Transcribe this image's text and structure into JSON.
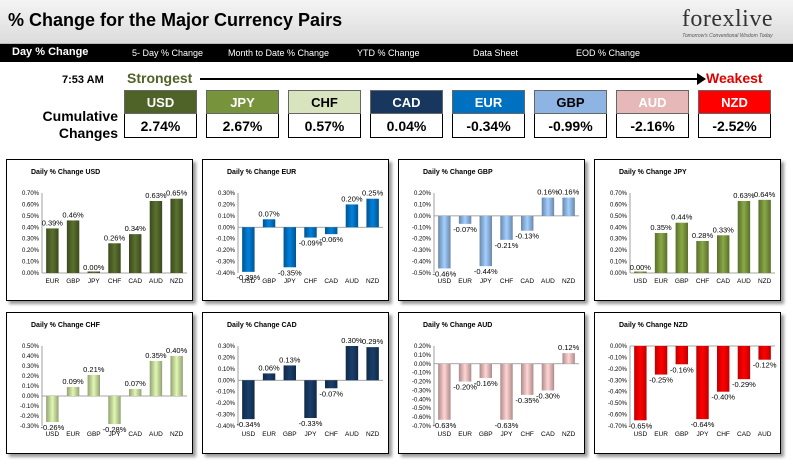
{
  "header": {
    "title": "% Change for the Major Currency Pairs",
    "logo": "forexlive",
    "logo_tagline": "Tomorrow's Conventional Wisdom Today"
  },
  "nav": {
    "items": [
      "Day % Change",
      "5- Day % Change",
      "Month to Date % Change",
      "YTD % Change",
      "Data Sheet",
      "EOD % Change"
    ]
  },
  "summary": {
    "time": "7:53 AM",
    "strongest_label": "Strongest",
    "weakest_label": "Weakest",
    "cumulative_label_1": "Cumulative",
    "cumulative_label_2": "Changes",
    "currencies": [
      {
        "code": "USD",
        "value": "2.74%",
        "color": "#4f6228",
        "text_color": "#ffffff"
      },
      {
        "code": "JPY",
        "value": "2.67%",
        "color": "#77933c",
        "text_color": "#ffffff"
      },
      {
        "code": "CHF",
        "value": "0.57%",
        "color": "#d7e4bd",
        "text_color": "#000000"
      },
      {
        "code": "CAD",
        "value": "0.04%",
        "color": "#17375e",
        "text_color": "#ffffff"
      },
      {
        "code": "EUR",
        "value": "-0.34%",
        "color": "#0070c0",
        "text_color": "#ffffff"
      },
      {
        "code": "GBP",
        "value": "-0.99%",
        "color": "#8db4e2",
        "text_color": "#000000"
      },
      {
        "code": "AUD",
        "value": "-2.16%",
        "color": "#e6b9b8",
        "text_color": "#ffffff"
      },
      {
        "code": "NZD",
        "value": "-2.52%",
        "color": "#ff0000",
        "text_color": "#ffffff"
      }
    ]
  },
  "chart_data": [
    {
      "type": "bar",
      "title": "Daily % Change USD",
      "color": "#4f6228",
      "categories": [
        "EUR",
        "GBP",
        "JPY",
        "CHF",
        "CAD",
        "AUD",
        "NZD"
      ],
      "values": [
        0.39,
        0.46,
        0.0,
        0.26,
        0.34,
        0.63,
        0.65
      ],
      "labels": [
        "0.39%",
        "0.46%",
        "0.00%",
        "0.26%",
        "0.34%",
        "0.63%",
        "0.65%"
      ],
      "ylim": [
        0,
        0.7
      ],
      "ticks": [
        "0.00%",
        "0.10%",
        "0.20%",
        "0.30%",
        "0.40%",
        "0.50%",
        "0.60%",
        "0.70%"
      ]
    },
    {
      "type": "bar",
      "title": "Daily % Change EUR",
      "color": "#0070c0",
      "categories": [
        "USD",
        "GBP",
        "JPY",
        "CHF",
        "CAD",
        "AUD",
        "NZD"
      ],
      "values": [
        -0.39,
        0.07,
        -0.35,
        -0.09,
        -0.06,
        0.2,
        0.25
      ],
      "labels": [
        "-0.39%",
        "0.07%",
        "-0.35%",
        "-0.09%",
        "-0.06%",
        "0.20%",
        "0.25%"
      ],
      "ylim": [
        -0.4,
        0.3
      ],
      "ticks": [
        "-0.40%",
        "-0.30%",
        "-0.20%",
        "-0.10%",
        "0.00%",
        "0.10%",
        "0.20%",
        "0.30%"
      ]
    },
    {
      "type": "bar",
      "title": "Daily % Change GBP",
      "color": "#8db4e2",
      "categories": [
        "USD",
        "EUR",
        "JPY",
        "CHF",
        "CAD",
        "AUD",
        "NZD"
      ],
      "values": [
        -0.46,
        -0.07,
        -0.44,
        -0.21,
        -0.13,
        0.16,
        0.16
      ],
      "labels": [
        "-0.46%",
        "-0.07%",
        "-0.44%",
        "-0.21%",
        "-0.13%",
        "0.16%",
        "0.16%"
      ],
      "ylim": [
        -0.5,
        0.2
      ],
      "ticks": [
        "-0.50%",
        "-0.40%",
        "-0.30%",
        "-0.20%",
        "-0.10%",
        "0.00%",
        "0.10%",
        "0.20%"
      ]
    },
    {
      "type": "bar",
      "title": "Daily % Change JPY",
      "color": "#77933c",
      "categories": [
        "USD",
        "EUR",
        "GBP",
        "CHF",
        "CAD",
        "AUD",
        "NZD"
      ],
      "values": [
        0.0,
        0.35,
        0.44,
        0.28,
        0.33,
        0.63,
        0.64
      ],
      "labels": [
        "0.00%",
        "0.35%",
        "0.44%",
        "0.28%",
        "0.33%",
        "0.63%",
        "0.64%"
      ],
      "ylim": [
        0,
        0.7
      ],
      "ticks": [
        "0.00%",
        "0.10%",
        "0.20%",
        "0.30%",
        "0.40%",
        "0.50%",
        "0.60%",
        "0.70%"
      ]
    },
    {
      "type": "bar",
      "title": "Daily % Change CHF",
      "color": "#c4d79b",
      "categories": [
        "USD",
        "EUR",
        "GBP",
        "JPY",
        "CAD",
        "AUD",
        "NZD"
      ],
      "values": [
        -0.26,
        0.09,
        0.21,
        -0.28,
        0.07,
        0.35,
        0.4
      ],
      "labels": [
        "-0.26%",
        "0.09%",
        "0.21%",
        "-0.28%",
        "0.07%",
        "0.35%",
        "0.40%"
      ],
      "ylim": [
        -0.3,
        0.5
      ],
      "ticks": [
        "-0.30%",
        "-0.20%",
        "-0.10%",
        "0.00%",
        "0.10%",
        "0.20%",
        "0.30%",
        "0.40%",
        "0.50%"
      ]
    },
    {
      "type": "bar",
      "title": "Daily % Change CAD",
      "color": "#17375e",
      "categories": [
        "USD",
        "EUR",
        "GBP",
        "JPY",
        "CHF",
        "AUD",
        "NZD"
      ],
      "values": [
        -0.34,
        0.06,
        0.13,
        -0.33,
        -0.07,
        0.3,
        0.29
      ],
      "labels": [
        "-0.34%",
        "0.06%",
        "0.13%",
        "-0.33%",
        "-0.07%",
        "0.30%",
        "0.29%"
      ],
      "ylim": [
        -0.4,
        0.3
      ],
      "ticks": [
        "-0.40%",
        "-0.30%",
        "-0.20%",
        "-0.10%",
        "0.00%",
        "0.10%",
        "0.20%",
        "0.30%"
      ]
    },
    {
      "type": "bar",
      "title": "Daily % Change AUD",
      "color": "#e6b9b8",
      "categories": [
        "USD",
        "EUR",
        "GBP",
        "JPY",
        "CHF",
        "CAD",
        "NZD"
      ],
      "values": [
        -0.63,
        -0.2,
        -0.16,
        -0.63,
        -0.35,
        -0.3,
        0.12
      ],
      "labels": [
        "-0.63%",
        "-0.20%",
        "-0.16%",
        "-0.63%",
        "-0.35%",
        "-0.30%",
        "0.12%"
      ],
      "ylim": [
        -0.7,
        0.2
      ],
      "ticks": [
        "-0.70%",
        "-0.60%",
        "-0.50%",
        "-0.40%",
        "-0.30%",
        "-0.20%",
        "-0.10%",
        "0.00%",
        "0.10%",
        "0.20%"
      ]
    },
    {
      "type": "bar",
      "title": "Daily % Change NZD",
      "color": "#ff0000",
      "categories": [
        "USD",
        "EUR",
        "GBP",
        "JPY",
        "CHF",
        "CAD",
        "AUD"
      ],
      "values": [
        -0.65,
        -0.25,
        -0.16,
        -0.64,
        -0.4,
        -0.29,
        -0.12
      ],
      "labels": [
        "-0.65%",
        "-0.25%",
        "-0.16%",
        "-0.64%",
        "-0.40%",
        "-0.29%",
        "-0.12%"
      ],
      "ylim": [
        -0.7,
        0.0
      ],
      "ticks": [
        "-0.70%",
        "-0.60%",
        "-0.50%",
        "-0.40%",
        "-0.30%",
        "-0.20%",
        "-0.10%",
        "0.00%"
      ]
    }
  ]
}
